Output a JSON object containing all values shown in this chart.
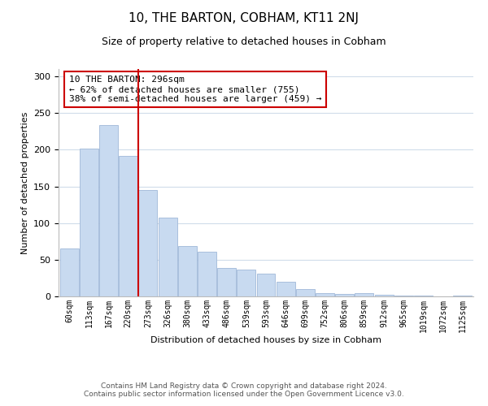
{
  "title": "10, THE BARTON, COBHAM, KT11 2NJ",
  "subtitle": "Size of property relative to detached houses in Cobham",
  "xlabel": "Distribution of detached houses by size in Cobham",
  "ylabel": "Number of detached properties",
  "bar_labels": [
    "60sqm",
    "113sqm",
    "167sqm",
    "220sqm",
    "273sqm",
    "326sqm",
    "380sqm",
    "433sqm",
    "486sqm",
    "539sqm",
    "593sqm",
    "646sqm",
    "699sqm",
    "752sqm",
    "806sqm",
    "859sqm",
    "912sqm",
    "965sqm",
    "1019sqm",
    "1072sqm",
    "1125sqm"
  ],
  "bar_values": [
    65,
    202,
    234,
    191,
    145,
    107,
    69,
    61,
    39,
    37,
    31,
    20,
    10,
    4,
    3,
    4,
    2,
    1,
    1,
    0,
    1
  ],
  "bar_color": "#c8daf0",
  "bar_edge_color": "#a0b8d8",
  "annotation_title": "10 THE BARTON: 296sqm",
  "annotation_line1": "← 62% of detached houses are smaller (755)",
  "annotation_line2": "38% of semi-detached houses are larger (459) →",
  "annotation_box_color": "#ffffff",
  "annotation_box_edge_color": "#cc0000",
  "highlight_line_color": "#cc0000",
  "highlight_line_xidx": 4,
  "ylim": [
    0,
    310
  ],
  "yticks": [
    0,
    50,
    100,
    150,
    200,
    250,
    300
  ],
  "footer_line1": "Contains HM Land Registry data © Crown copyright and database right 2024.",
  "footer_line2": "Contains public sector information licensed under the Open Government Licence v3.0.",
  "background_color": "#ffffff",
  "grid_color": "#d0dcea"
}
